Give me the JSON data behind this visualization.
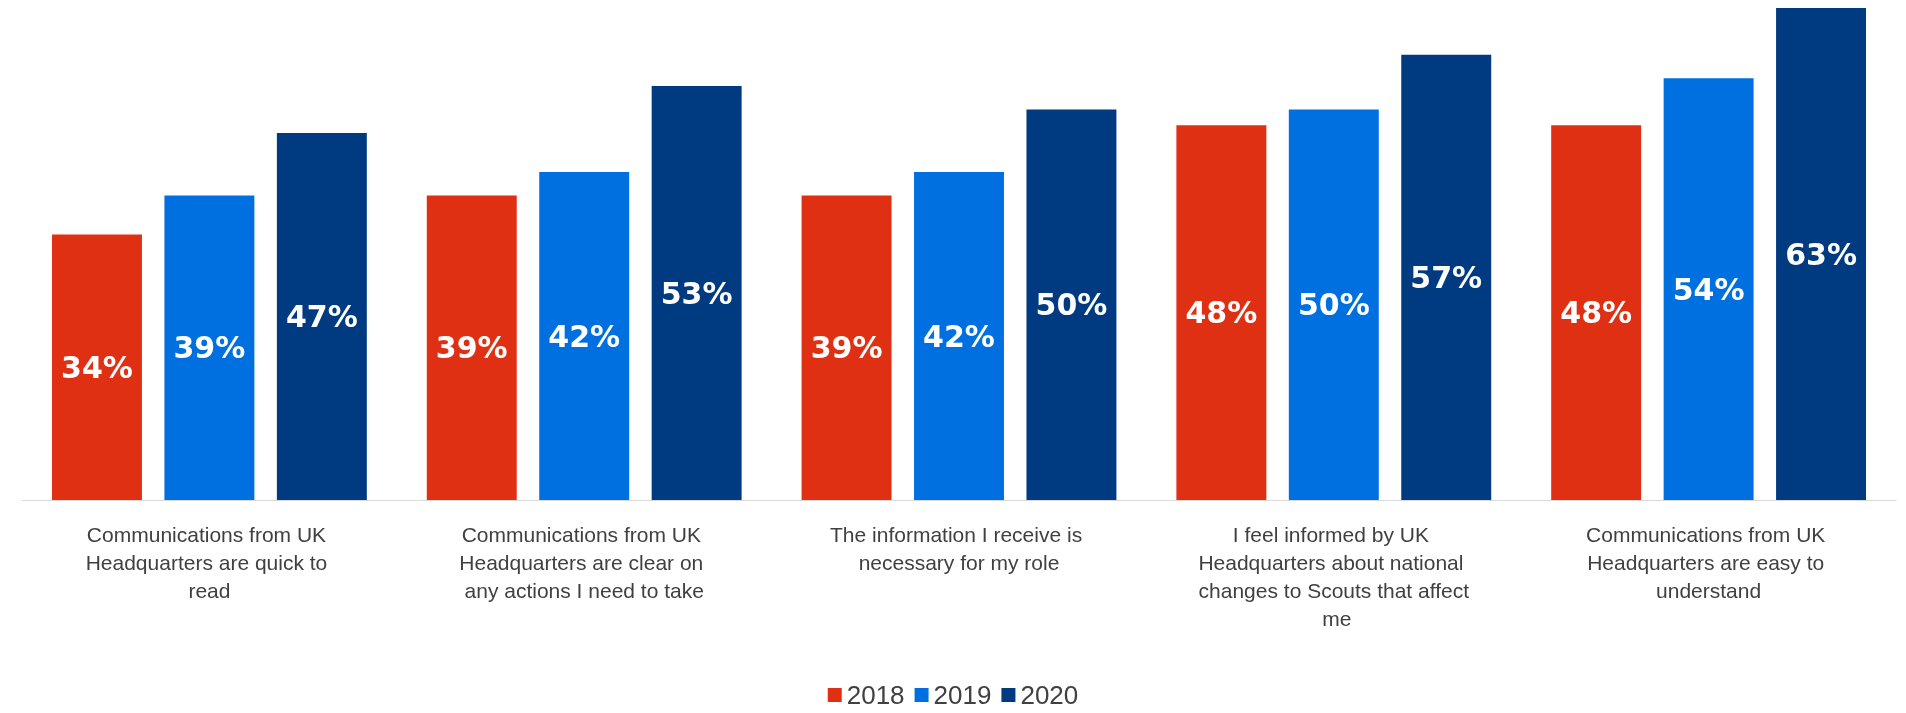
{
  "chart_data": {
    "type": "bar",
    "categories": [
      "Communications from UK Headquarters are quick to read",
      "Communications from UK Headquarters are clear on any actions I need to take",
      "The information I receive is necessary for my role",
      "I feel informed by UK Headquarters about national changes to Scouts that affect me",
      "Communications from UK Headquarters are easy to understand"
    ],
    "series": [
      {
        "name": "2018",
        "color": "#e03014",
        "values": [
          34,
          39,
          39,
          48,
          48
        ],
        "value_labels": [
          "34%",
          "39%",
          "39%",
          "48%",
          "48%"
        ]
      },
      {
        "name": "2019",
        "color": "#0070e0",
        "values": [
          39,
          42,
          42,
          50,
          54
        ],
        "value_labels": [
          "39%",
          "42%",
          "42%",
          "50%",
          "54%"
        ]
      },
      {
        "name": "2020",
        "color": "#003a80",
        "values": [
          47,
          53,
          50,
          57,
          63
        ],
        "value_labels": [
          "47%",
          "53%",
          "50%",
          "57%",
          "63%"
        ]
      }
    ],
    "legend": "bottom"
  }
}
